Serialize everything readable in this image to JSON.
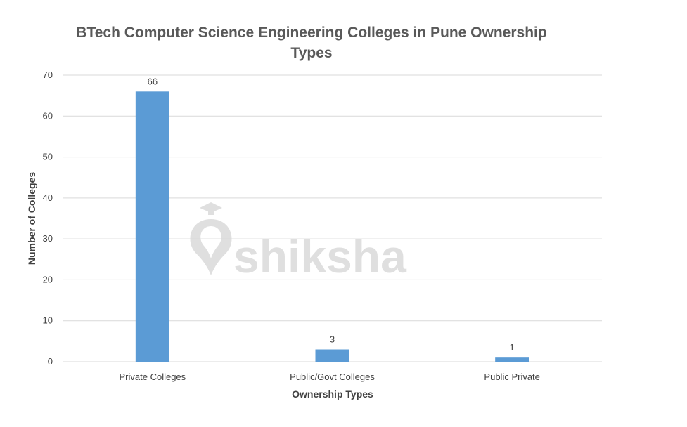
{
  "watermark": {
    "text": "shiksha"
  },
  "chart_data": {
    "type": "bar",
    "title_line1": "BTech Computer Science Engineering Colleges in Pune Ownership",
    "title_line2": "Types",
    "xlabel": "Ownership Types",
    "ylabel": "Number of Colleges",
    "categories": [
      "Private Colleges",
      "Public/Govt Colleges",
      "Public Private"
    ],
    "values": [
      66,
      3,
      1
    ],
    "data_labels": [
      "66",
      "3",
      "1"
    ],
    "ylim": [
      0,
      70
    ],
    "yticks": [
      0,
      10,
      20,
      30,
      40,
      50,
      60,
      70
    ],
    "grid": true,
    "legend": "none",
    "bar_color": "#5b9bd5"
  }
}
